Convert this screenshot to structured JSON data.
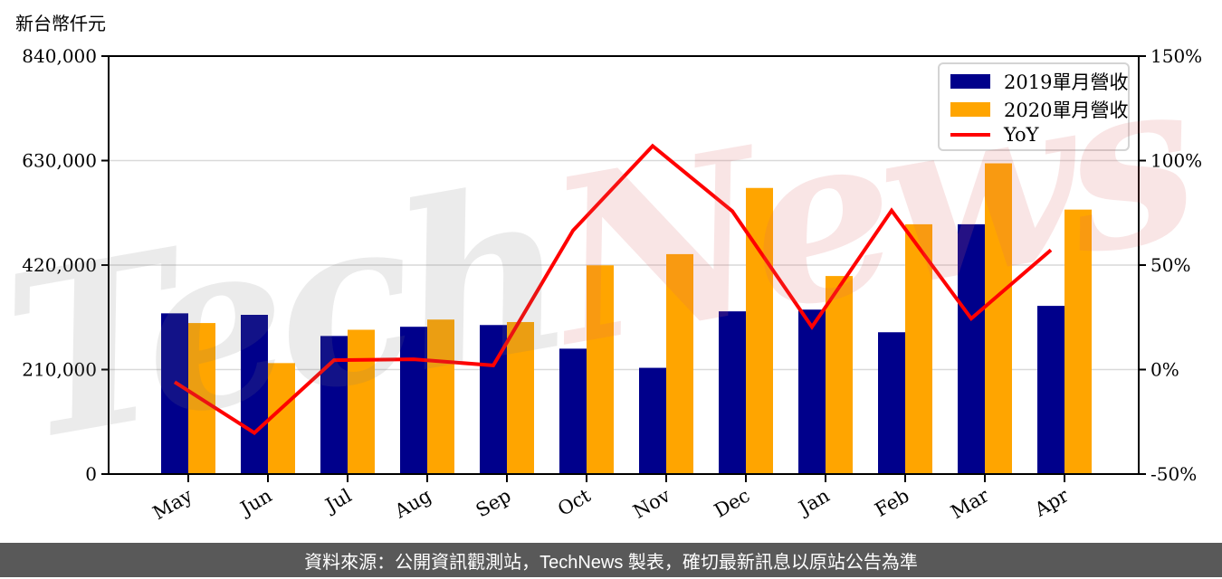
{
  "chart": {
    "unit_label": "新台幣仟元",
    "watermark": {
      "part1": "Tech",
      "part2": "News"
    },
    "footer": {
      "text": "資料來源：公開資訊觀測站，TechNews 製表，確切最新訊息以原站公告為準"
    },
    "colors": {
      "bar_2019": "#00008B",
      "bar_2020": "#FFA500",
      "yoy_line": "#FF0000",
      "grid": "#d9d9d9",
      "spine": "#000000",
      "footer_bg": "#595959",
      "footer_text": "#ffffff",
      "legend_border": "#d4d4d4"
    }
  },
  "chart_data": {
    "type": "bar",
    "title": "",
    "categories": [
      "May",
      "Jun",
      "Jul",
      "Aug",
      "Sep",
      "Oct",
      "Nov",
      "Dec",
      "Jan",
      "Feb",
      "Mar",
      "Apr"
    ],
    "series": [
      {
        "name": "2019單月營收",
        "type": "bar",
        "axis": "left",
        "color": "#00008B",
        "values": [
          323000,
          320000,
          277500,
          296000,
          299500,
          252000,
          213500,
          327000,
          330500,
          285000,
          502000,
          338000
        ]
      },
      {
        "name": "2020單月營收",
        "type": "bar",
        "axis": "left",
        "color": "#FFA500",
        "values": [
          303500,
          223000,
          290000,
          310500,
          305500,
          419500,
          442000,
          575000,
          398000,
          502000,
          624500,
          531500
        ]
      },
      {
        "name": "YoY",
        "type": "line",
        "axis": "right",
        "color": "#FF0000",
        "values": [
          -6.0,
          -30.3,
          4.5,
          4.9,
          2.0,
          66.5,
          107.0,
          75.8,
          20.4,
          76.1,
          24.4,
          57.2
        ]
      }
    ],
    "left_axis": {
      "title": "新台幣仟元",
      "min": 0,
      "max": 840000,
      "ticks": [
        {
          "label": "840,000",
          "value": 840000
        },
        {
          "label": "630,000",
          "value": 630000
        },
        {
          "label": "420,000",
          "value": 420000
        },
        {
          "label": "210,000",
          "value": 210000
        },
        {
          "label": "0",
          "value": 0
        }
      ]
    },
    "right_axis": {
      "title": "",
      "min": -50,
      "max": 150,
      "unit": "%",
      "ticks": [
        {
          "label": "150%",
          "value": 150
        },
        {
          "label": "100%",
          "value": 100
        },
        {
          "label": "50%",
          "value": 50
        },
        {
          "label": "0%",
          "value": 0
        },
        {
          "label": "-50%",
          "value": -50
        }
      ]
    },
    "legend_position": "top-right",
    "grid": true
  }
}
